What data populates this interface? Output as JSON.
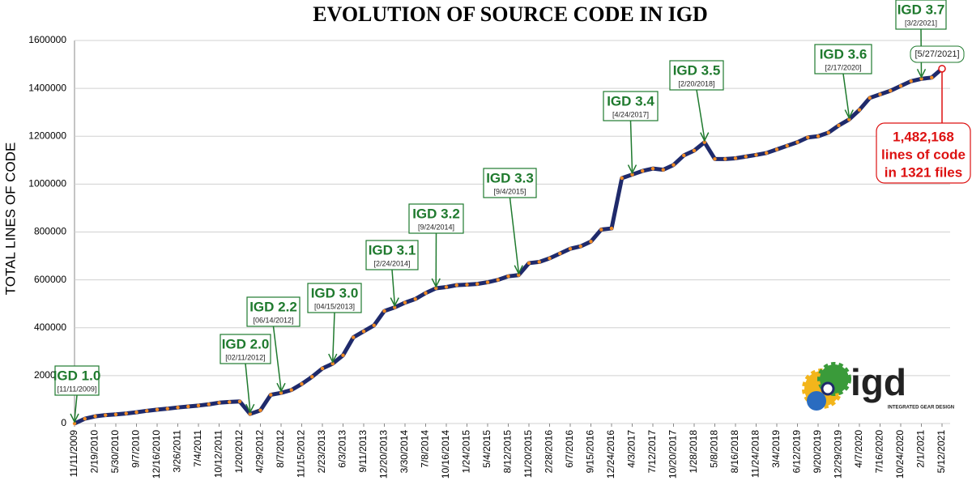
{
  "chart_data": {
    "type": "line",
    "title": "EVOLUTION OF SOURCE CODE IN IGD",
    "y_label": "TOTAL LINES OF CODE",
    "categories": [
      "11/11/2009",
      null,
      "2/19/2010",
      null,
      "5/30/2010",
      null,
      "9/7/2010",
      null,
      "12/16/2010",
      null,
      "3/26/2011",
      null,
      "7/4/2011",
      null,
      "10/12/2011",
      null,
      "1/20/2012",
      null,
      "4/29/2012",
      null,
      "8/7/2012",
      null,
      "11/15/2012",
      null,
      "2/23/2013",
      null,
      "6/3/2013",
      null,
      "9/11/2013",
      null,
      "12/20/2013",
      null,
      "3/30/2014",
      null,
      "7/8/2014",
      null,
      "10/16/2014",
      null,
      "1/24/2015",
      null,
      "5/4/2015",
      null,
      "8/12/2015",
      null,
      "11/20/2015",
      null,
      "2/28/2016",
      null,
      "6/7/2016",
      null,
      "9/15/2016",
      null,
      "12/24/2016",
      null,
      "4/3/2017",
      null,
      "7/12/2017",
      null,
      "10/20/2017",
      null,
      "1/28/2018",
      null,
      "5/8/2018",
      null,
      "8/16/2018",
      null,
      "11/24/2018",
      null,
      "3/4/2019",
      null,
      "6/12/2019",
      null,
      "9/20/2019",
      null,
      "12/29/2019",
      null,
      "4/7/2020",
      null,
      "7/16/2020",
      null,
      "10/24/2020",
      null,
      "2/1/2021",
      null,
      "5/12/2021"
    ],
    "series": [
      {
        "name": "Lines of code",
        "color": "#1f2a6b",
        "marker_color": "#f08a24",
        "values": [
          0,
          20000,
          30000,
          35000,
          38000,
          42000,
          47000,
          53000,
          58000,
          62000,
          67000,
          71000,
          75000,
          80000,
          87000,
          90000,
          92000,
          40000,
          55000,
          120000,
          128000,
          140000,
          165000,
          195000,
          230000,
          250000,
          285000,
          360000,
          385000,
          410000,
          470000,
          485000,
          505000,
          520000,
          545000,
          565000,
          570000,
          578000,
          580000,
          583000,
          590000,
          600000,
          615000,
          620000,
          670000,
          675000,
          690000,
          710000,
          730000,
          740000,
          760000,
          810000,
          815000,
          1025000,
          1040000,
          1055000,
          1065000,
          1060000,
          1080000,
          1120000,
          1140000,
          1175000,
          1105000,
          1105000,
          1108000,
          1115000,
          1122000,
          1130000,
          1145000,
          1160000,
          1175000,
          1195000,
          1200000,
          1215000,
          1245000,
          1270000,
          1310000,
          1360000,
          1375000,
          1390000,
          1410000,
          1430000,
          1440000,
          1445000,
          1482168
        ]
      }
    ],
    "ylim": [
      0,
      1600000
    ],
    "yticks": [
      0,
      200000,
      400000,
      600000,
      800000,
      1000000,
      1200000,
      1400000,
      1600000
    ],
    "releases": [
      {
        "label": "IGD 1.0",
        "date": "[11/11/2009]"
      },
      {
        "label": "IGD 2.0",
        "date": "[02/11/2012]"
      },
      {
        "label": "IGD 2.2",
        "date": "[06/14/2012]"
      },
      {
        "label": "IGD 3.0",
        "date": "[04/15/2013]"
      },
      {
        "label": "IGD 3.1",
        "date": "[2/24/2014]"
      },
      {
        "label": "IGD 3.2",
        "date": "[9/24/2014]"
      },
      {
        "label": "IGD 3.3",
        "date": "[9/4/2015]"
      },
      {
        "label": "IGD 3.4",
        "date": "[4/24/2017]"
      },
      {
        "label": "IGD 3.5",
        "date": "[2/20/2018]"
      },
      {
        "label": "IGD 3.6",
        "date": "[2/17/2020]"
      },
      {
        "label": "IGD 3.7",
        "date": "[3/2/2021]"
      }
    ],
    "last_date": "[5/27/2021]",
    "summary": [
      "1,482,168",
      "lines of code",
      "in 1321 files"
    ],
    "logo": {
      "name": "igd",
      "tagline": "INTEGRATED GEAR DESIGN"
    }
  }
}
